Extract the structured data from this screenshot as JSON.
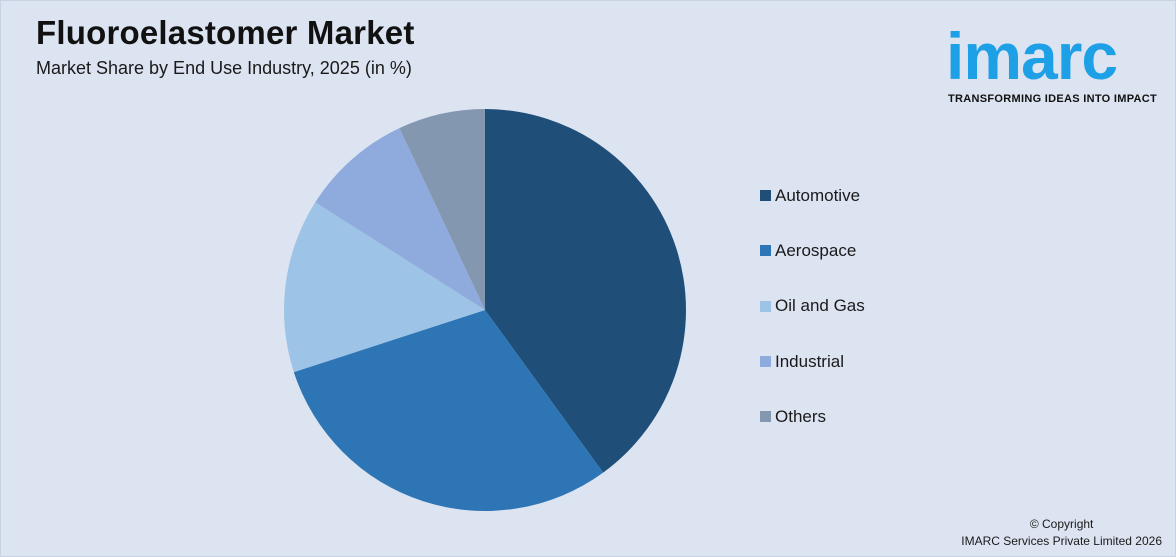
{
  "chart_data": {
    "type": "pie",
    "title": "Fluoroelastomer Market",
    "subtitle": "Market Share by End Use Industry, 2025 (in %)",
    "categories": [
      "Automotive",
      "Aerospace",
      "Oil and Gas",
      "Industrial",
      "Others"
    ],
    "values": [
      40,
      30,
      14,
      9,
      7
    ],
    "colors": [
      "#1f4e79",
      "#2e75b6",
      "#9dc3e6",
      "#8faadc",
      "#8497b0"
    ],
    "start_angle_deg": 0,
    "direction": "clockwise",
    "legend_position": "right"
  },
  "brand": {
    "logo_text": "imarc",
    "tagline": "TRANSFORMING IDEAS INTO IMPACT",
    "color": "#1ea0e6"
  },
  "footer": {
    "copyright_line1": "© Copyright",
    "copyright_line2": "IMARC Services Private Limited 2026"
  }
}
